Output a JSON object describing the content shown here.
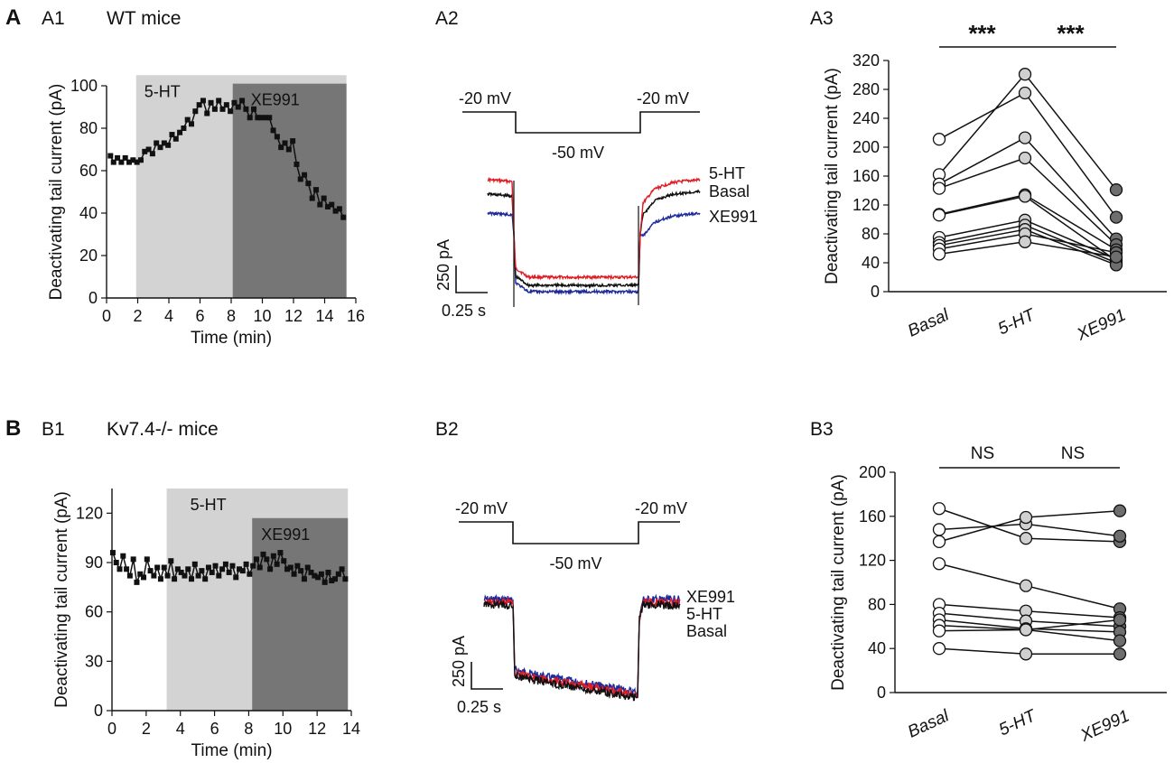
{
  "colors": {
    "red": "#e01b24",
    "black": "#111111",
    "blue": "#1c2a9a",
    "light_shade": "#d3d3d3",
    "dark_shade": "#767676",
    "light_marker": "#d0d0d0",
    "dark_marker": "#6e6e6e"
  },
  "panels": {
    "A": {
      "label": "A",
      "A1": {
        "label": "A1",
        "title": "WT mice"
      },
      "A2": {
        "label": "A2"
      },
      "A3": {
        "label": "A3"
      }
    },
    "B": {
      "label": "B",
      "B1": {
        "label": "B1",
        "title": "Kv7.4-/- mice"
      },
      "B2": {
        "label": "B2"
      },
      "B3": {
        "label": "B3"
      }
    }
  },
  "chart_data": [
    {
      "id": "A1",
      "type": "line",
      "xlabel": "Time (min)",
      "ylabel": "Deactivating tail current (pA)",
      "xlim": [
        0,
        16
      ],
      "ylim": [
        0,
        100
      ],
      "xticks": [
        "0",
        "2",
        "4",
        "6",
        "8",
        "10",
        "12",
        "14",
        "16"
      ],
      "yticks": [
        "0",
        "20",
        "40",
        "60",
        "80",
        "100"
      ],
      "shades": [
        {
          "label": "5-HT",
          "x0": 1.9,
          "x1": 15.4,
          "top": 105
        },
        {
          "label": "XE991",
          "x0": 8.1,
          "x1": 15.4,
          "top": 101
        }
      ],
      "series": [
        {
          "name": "tail current",
          "values": [
            [
              0.25,
              67
            ],
            [
              0.45,
              64
            ],
            [
              0.7,
              66
            ],
            [
              0.95,
              64
            ],
            [
              1.2,
              66
            ],
            [
              1.45,
              64
            ],
            [
              1.7,
              65
            ],
            [
              1.95,
              64
            ],
            [
              2.2,
              65
            ],
            [
              2.45,
              69
            ],
            [
              2.7,
              70
            ],
            [
              2.95,
              68
            ],
            [
              3.2,
              73
            ],
            [
              3.45,
              71
            ],
            [
              3.7,
              73
            ],
            [
              3.95,
              72
            ],
            [
              4.2,
              77
            ],
            [
              4.45,
              75
            ],
            [
              4.7,
              78
            ],
            [
              4.95,
              80
            ],
            [
              5.2,
              84
            ],
            [
              5.45,
              82
            ],
            [
              5.7,
              88
            ],
            [
              5.95,
              91
            ],
            [
              6.2,
              93
            ],
            [
              6.45,
              87
            ],
            [
              6.7,
              92
            ],
            [
              6.95,
              89
            ],
            [
              7.2,
              93
            ],
            [
              7.45,
              89
            ],
            [
              7.7,
              91
            ],
            [
              7.95,
              88
            ],
            [
              8.2,
              92
            ],
            [
              8.45,
              90
            ],
            [
              8.7,
              93
            ],
            [
              8.95,
              89
            ],
            [
              9.2,
              85
            ],
            [
              9.45,
              89
            ],
            [
              9.7,
              85
            ],
            [
              9.95,
              85
            ],
            [
              10.2,
              85
            ],
            [
              10.45,
              85
            ],
            [
              10.7,
              79
            ],
            [
              10.95,
              76
            ],
            [
              11.2,
              71
            ],
            [
              11.45,
              73
            ],
            [
              11.7,
              70
            ],
            [
              11.95,
              74
            ],
            [
              12.2,
              63
            ],
            [
              12.45,
              56
            ],
            [
              12.7,
              58
            ],
            [
              12.95,
              54
            ],
            [
              13.2,
              47
            ],
            [
              13.45,
              51
            ],
            [
              13.7,
              44
            ],
            [
              13.95,
              47
            ],
            [
              14.2,
              43
            ],
            [
              14.45,
              44
            ],
            [
              14.7,
              41
            ],
            [
              14.95,
              42
            ],
            [
              15.2,
              38
            ]
          ]
        }
      ]
    },
    {
      "id": "A2",
      "type": "line",
      "voltage_labels": [
        "-20 mV",
        "-50 mV",
        "-20 mV"
      ],
      "scalebar": {
        "current": "250 pA",
        "time": "0.25 s"
      },
      "series": [
        {
          "name": "5-HT",
          "color": "red",
          "baseline": 59,
          "step": 12,
          "recovery": 58
        },
        {
          "name": "Basal",
          "color": "black",
          "baseline": 50,
          "step": 8,
          "recovery": 52
        },
        {
          "name": "XE991",
          "color": "blue",
          "baseline": 41,
          "step": 3,
          "recovery": 40
        }
      ]
    },
    {
      "id": "A3",
      "type": "scatter",
      "categories": [
        "Basal",
        "5-HT",
        "XE991"
      ],
      "ylabel": "Deactivating tail current (pA)",
      "ylim": [
        0,
        320
      ],
      "yticks": [
        "0",
        "40",
        "80",
        "120",
        "160",
        "200",
        "240",
        "280",
        "320"
      ],
      "significance": [
        "***",
        "***"
      ],
      "lines": [
        [
          211,
          275,
          103
        ],
        [
          162,
          301,
          141
        ],
        [
          149,
          213,
          73
        ],
        [
          143,
          185,
          65
        ],
        [
          107,
          134,
          58
        ],
        [
          106,
          132,
          43
        ],
        [
          75,
          99,
          45
        ],
        [
          68,
          92,
          40
        ],
        [
          64,
          86,
          37
        ],
        [
          59,
          80,
          54
        ],
        [
          52,
          69,
          48
        ]
      ]
    },
    {
      "id": "B1",
      "type": "line",
      "xlabel": "Time (min)",
      "ylabel": "Deactivating tail current (pA)",
      "xlim": [
        0,
        14
      ],
      "ylim": [
        0,
        135
      ],
      "xticks": [
        "0",
        "2",
        "4",
        "6",
        "8",
        "10",
        "12",
        "14"
      ],
      "yticks": [
        "0",
        "30",
        "60",
        "90",
        "120"
      ],
      "shades": [
        {
          "label": "5-HT",
          "x0": 3.2,
          "x1": 13.8,
          "top": 135
        },
        {
          "label": "XE991",
          "x0": 8.2,
          "x1": 13.8,
          "top": 117
        }
      ],
      "series": [
        {
          "name": "tail current",
          "values": [
            [
              0.05,
              96
            ],
            [
              0.25,
              90
            ],
            [
              0.45,
              86
            ],
            [
              0.65,
              94
            ],
            [
              0.85,
              86
            ],
            [
              1.05,
              82
            ],
            [
              1.25,
              92
            ],
            [
              1.45,
              78
            ],
            [
              1.65,
              83
            ],
            [
              1.85,
              81
            ],
            [
              2.05,
              92
            ],
            [
              2.25,
              85
            ],
            [
              2.45,
              82
            ],
            [
              2.65,
              87
            ],
            [
              2.85,
              80
            ],
            [
              3.05,
              87
            ],
            [
              3.25,
              82
            ],
            [
              3.45,
              91
            ],
            [
              3.65,
              80
            ],
            [
              3.85,
              86
            ],
            [
              4.05,
              84
            ],
            [
              4.25,
              82
            ],
            [
              4.45,
              86
            ],
            [
              4.65,
              80
            ],
            [
              4.85,
              89
            ],
            [
              5.05,
              82
            ],
            [
              5.25,
              85
            ],
            [
              5.45,
              80
            ],
            [
              5.65,
              87
            ],
            [
              5.85,
              84
            ],
            [
              6.05,
              88
            ],
            [
              6.25,
              82
            ],
            [
              6.45,
              86
            ],
            [
              6.65,
              89
            ],
            [
              6.85,
              84
            ],
            [
              7.05,
              88
            ],
            [
              7.25,
              81
            ],
            [
              7.45,
              86
            ],
            [
              7.65,
              85
            ],
            [
              7.85,
              89
            ],
            [
              8.05,
              83
            ],
            [
              8.25,
              88
            ],
            [
              8.45,
              92
            ],
            [
              8.65,
              87
            ],
            [
              8.85,
              95
            ],
            [
              9.05,
              92
            ],
            [
              9.25,
              86
            ],
            [
              9.45,
              94
            ],
            [
              9.65,
              89
            ],
            [
              9.85,
              96
            ],
            [
              10.05,
              91
            ],
            [
              10.25,
              86
            ],
            [
              10.45,
              87
            ],
            [
              10.65,
              83
            ],
            [
              10.85,
              88
            ],
            [
              11.05,
              85
            ],
            [
              11.25,
              80
            ],
            [
              11.45,
              87
            ],
            [
              11.65,
              84
            ],
            [
              11.85,
              82
            ],
            [
              12.05,
              81
            ],
            [
              12.25,
              83
            ],
            [
              12.45,
              78
            ],
            [
              12.65,
              84
            ],
            [
              12.85,
              79
            ],
            [
              13.05,
              80
            ],
            [
              13.25,
              83
            ],
            [
              13.45,
              86
            ],
            [
              13.65,
              80
            ]
          ]
        }
      ]
    },
    {
      "id": "B2",
      "type": "line",
      "voltage_labels": [
        "-20 mV",
        "-50 mV",
        "-20 mV"
      ],
      "scalebar": {
        "current": "250 pA",
        "time": "0.25 s"
      },
      "series": [
        {
          "name": "XE991",
          "color": "blue"
        },
        {
          "name": "5-HT",
          "color": "red"
        },
        {
          "name": "Basal",
          "color": "black"
        }
      ]
    },
    {
      "id": "B3",
      "type": "scatter",
      "categories": [
        "Basal",
        "5-HT",
        "XE991"
      ],
      "ylabel": "Deactivating tail current (pA)",
      "ylim": [
        0,
        200
      ],
      "yticks": [
        "0",
        "40",
        "80",
        "120",
        "160",
        "200"
      ],
      "significance": [
        "NS",
        "NS"
      ],
      "lines": [
        [
          167,
          140,
          137
        ],
        [
          148,
          153,
          142
        ],
        [
          137,
          159,
          165
        ],
        [
          117,
          97,
          76
        ],
        [
          80,
          74,
          68
        ],
        [
          72,
          65,
          60
        ],
        [
          66,
          58,
          55
        ],
        [
          61,
          57,
          47
        ],
        [
          56,
          57,
          66
        ],
        [
          40,
          35,
          35
        ]
      ]
    }
  ]
}
